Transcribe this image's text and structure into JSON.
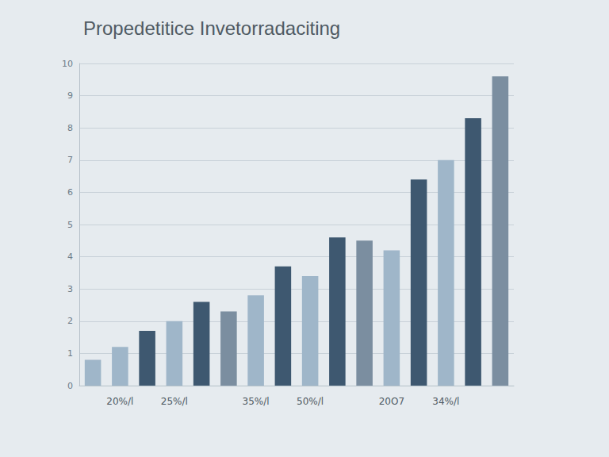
{
  "chart_data": {
    "type": "bar",
    "title": "Propedetitice Invetorradaciting",
    "categories": [
      null,
      "20%/l",
      null,
      "25%/l",
      null,
      null,
      "35%/l",
      null,
      "50%/l",
      null,
      null,
      "20O7",
      null,
      "34%/l",
      null,
      null
    ],
    "values": [
      0.8,
      1.2,
      1.7,
      2.0,
      2.6,
      2.3,
      2.8,
      3.7,
      3.4,
      4.6,
      4.5,
      4.2,
      6.4,
      7.0,
      8.3,
      9.6
    ],
    "colors": [
      "#9fb6c9",
      "#9fb6c9",
      "#3e5870",
      "#9fb6c9",
      "#3e5870",
      "#7b8ea0",
      "#9fb6c9",
      "#3e5870",
      "#9fb6c9",
      "#3e5870",
      "#7b8ea0",
      "#9fb6c9",
      "#3e5870",
      "#9fb6c9",
      "#3e5870",
      "#7b8ea0"
    ],
    "ylim": [
      0,
      10
    ],
    "yticks": [
      0,
      1,
      2,
      3,
      4,
      5,
      6,
      7,
      8,
      9,
      10
    ],
    "grid": true
  }
}
